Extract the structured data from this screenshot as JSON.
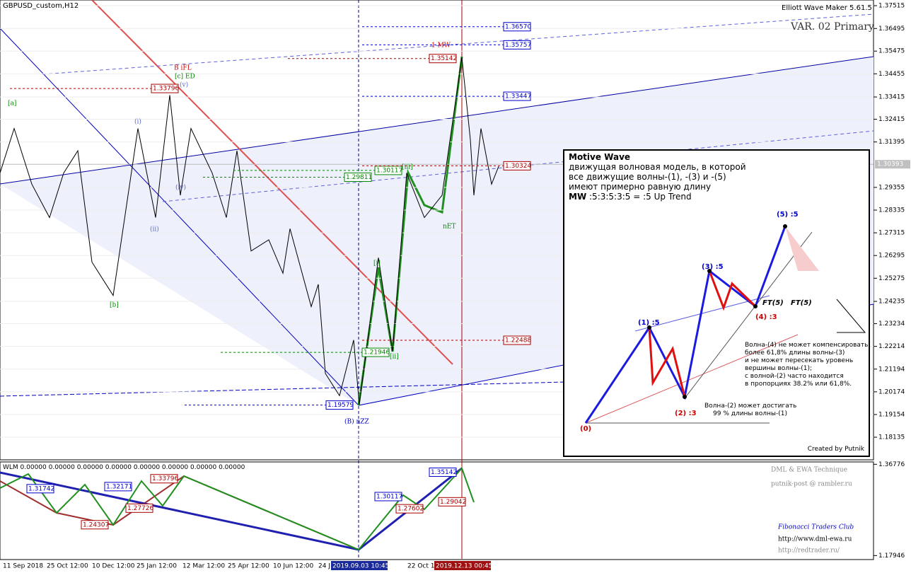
{
  "header": {
    "symbol": "GBPUSD_custom,H12",
    "indicator": "Elliott Wave Maker 5.61.5",
    "variant": "VAR. 02 Primary"
  },
  "price_axis": {
    "ylim": [
      1.1712,
      1.3777
    ],
    "ticks": [
      1.37515,
      {
        "value": 1.3649,
        "label": "1.36495"
      },
      1.35475,
      1.34455,
      1.33415,
      1.32415,
      1.31395,
      1.29355,
      1.28335,
      1.27315,
      1.26295,
      1.25275,
      1.24235,
      1.23234,
      1.22214,
      1.21194,
      1.20174,
      1.19154,
      1.18135
    ],
    "current": 1.30393
  },
  "price_series": {
    "xlim": [
      0,
      1235
    ],
    "x": [
      0,
      20,
      45,
      70,
      90,
      110,
      130,
      160,
      195,
      220,
      240,
      255,
      270,
      300,
      320,
      335,
      355,
      380,
      400,
      410,
      440,
      450,
      460,
      480,
      500,
      508,
      535,
      555,
      575,
      600,
      625,
      653,
      665,
      670,
      680,
      695,
      705
    ],
    "values": [
      1.3,
      1.32,
      1.295,
      1.28,
      1.3,
      1.31,
      1.26,
      1.245,
      1.32,
      1.28,
      1.335,
      1.29,
      1.32,
      1.3,
      1.28,
      1.31,
      1.265,
      1.27,
      1.255,
      1.275,
      1.24,
      1.25,
      1.21,
      1.2,
      1.225,
      1.196,
      1.262,
      1.22,
      1.3,
      1.28,
      1.29,
      1.352,
      1.315,
      1.29,
      1.32,
      1.295,
      1.303
    ]
  },
  "price_tags": [
    {
      "value": 1.3657,
      "label": "1.36570"
    },
    {
      "value": 1.35757,
      "label": "1.35757"
    },
    {
      "value": 1.35142,
      "label": "1.35142"
    },
    {
      "value": 1.33796,
      "label": "1.33796"
    },
    {
      "value": 1.33447,
      "label": "1.33447"
    },
    {
      "value": 1.30117,
      "label": "1.30117"
    },
    {
      "value": 1.30324,
      "label": "1.30324"
    },
    {
      "value": 1.29811,
      "label": "1.29811"
    },
    {
      "value": 1.22488,
      "label": "1.22488"
    },
    {
      "value": 1.21946,
      "label": "1.21946"
    },
    {
      "value": 1.19579,
      "label": "1.19579"
    }
  ],
  "wave_labels": [
    "1 MW",
    "B iFL",
    "[c] ED",
    "[a]",
    "[b]",
    "(B) nZZ",
    "[i]",
    "[ii]",
    "[iii]",
    "(i)",
    "(ii)",
    "(iv)",
    "(v)",
    "nET"
  ],
  "time_axis": [
    "11 Sep 2018",
    "25 Oct 12:00",
    "10 Dec 12:00",
    "25 Jan 12:00",
    "12 Mar 12:00",
    "25 Apr 12:00",
    "10 Jun 12:00",
    "24 J",
    "2019.09.03 10:45",
    "22 Oct 1",
    "2019.12.13 00:45"
  ],
  "inset": {
    "title": "Motive Wave",
    "lines": [
      "движущая волновая модель, в которой",
      "все движущие волны-(1), -(3) и -(5)",
      "имеют примерно равную длину"
    ],
    "mw_key": "MW",
    "mw_rest": ":5:3:5:3:5 = :5 Up Trend",
    "points": [
      "(0)",
      "(1) :5",
      "(2) :3",
      "(3) :5",
      "(4) :3",
      "(5) :5",
      "FT(5)",
      "FT(5)"
    ],
    "note1": [
      "Волна-(4) не может компенсировать",
      "более 61,8% длины волны-(3)",
      "и не может пересекать уровень",
      "вершины волны-(1);",
      "с волной-(2) часто находится",
      "в пропорциях 38.2% или 61,8%."
    ],
    "note2": [
      "Волна-(2) может достигать",
      "99 % длины волны-(1)"
    ],
    "credit": "Created by Putnik"
  },
  "indicator": {
    "legend": "WLM 0.00000 0.00000 0.00000 0.00000 0.00000 0.00000 0.00000 0.00000",
    "ylim": [
      1.1712,
      1.3726
    ],
    "ticks": [
      1.36776,
      1.17946
    ],
    "tags": [
      {
        "value": 1.31742,
        "label": "1.31742"
      },
      {
        "value": 1.32171,
        "label": "1.32171"
      },
      {
        "value": 1.33796,
        "label": "1.33796"
      },
      {
        "value": 1.27726,
        "label": "1.27726"
      },
      {
        "value": 1.24307,
        "label": "1.24307"
      },
      {
        "value": 1.35142,
        "label": "1.35142"
      },
      {
        "value": 1.30117,
        "label": "1.30117"
      },
      {
        "value": 1.27602,
        "label": "1.27602"
      },
      {
        "value": 1.29042,
        "label": "1.29042"
      }
    ],
    "credits": [
      "DML & EWA Technique",
      "putnik-post @ rambler.ru",
      "Fibonacci   Traders   Club",
      "http://www.dml-ewa.ru",
      "http://redtrader.ru/"
    ]
  }
}
